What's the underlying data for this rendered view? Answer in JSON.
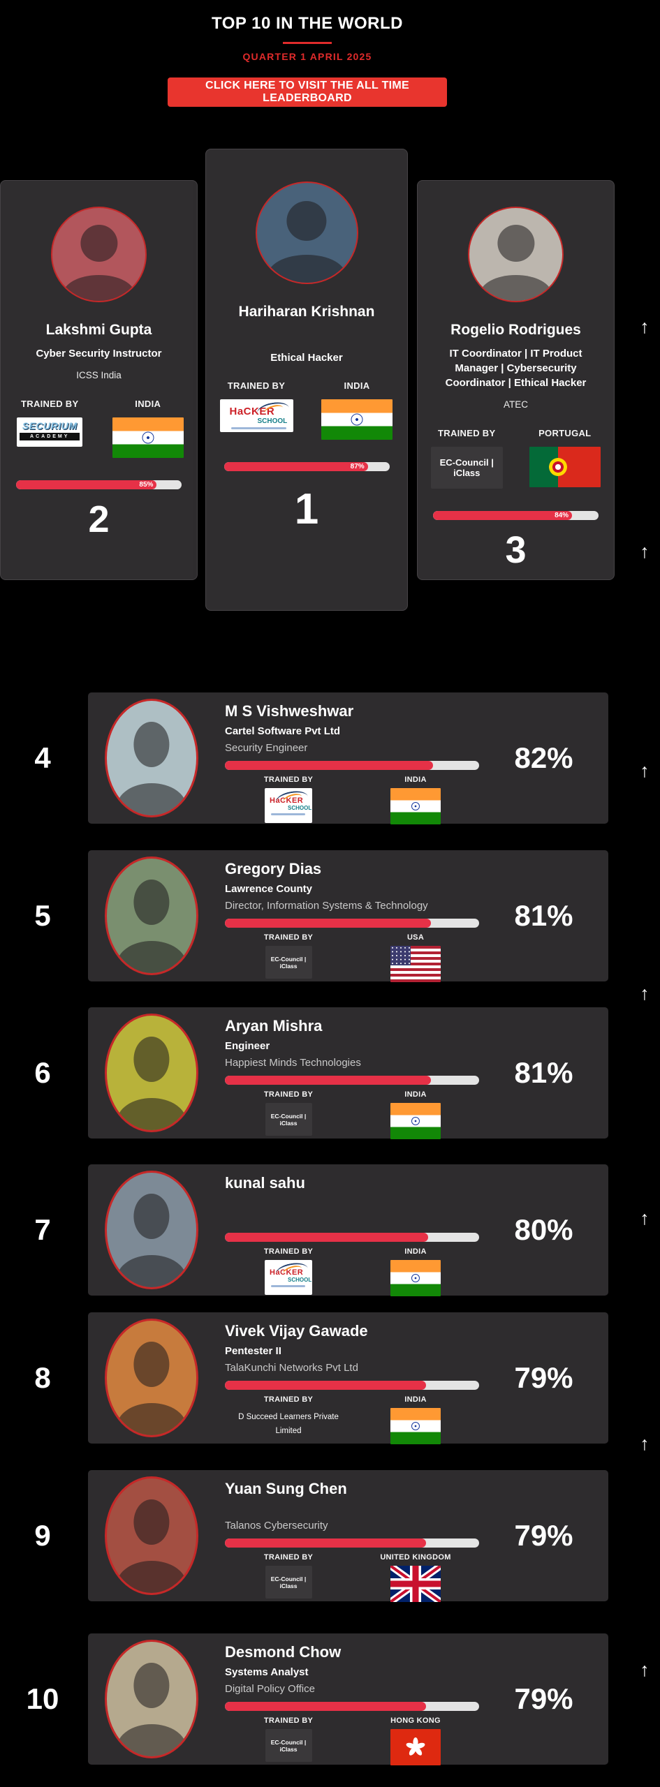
{
  "colors": {
    "background": "#000000",
    "card": "#2f2d2f",
    "bar_red": "#e63147",
    "bar_track": "#e4e4e4",
    "button_red": "#e8352e",
    "subtitle_red": "#e02b2b",
    "avatar_ring": "#c62828"
  },
  "header": {
    "title": "TOP 10 IN THE WORLD",
    "subtitle": "QUARTER 1 APRIL 2025",
    "cta_label": "CLICK HERE TO VISIT THE ALL TIME LEADERBOARD"
  },
  "labels": {
    "trained_by": "TRAINED BY"
  },
  "icons": {
    "up_arrow": "↑"
  },
  "logos": {
    "securium_academy": {
      "line1": "SECURIUM",
      "line2": "ACADEMY"
    },
    "hacker_school": {
      "line1": "HaCKER",
      "line2": "SCHOOL"
    },
    "ec_council_iclass": {
      "text": "EC-Council | iClass"
    }
  },
  "podium": [
    {
      "rank": "2",
      "name": "Lakshmi Gupta",
      "role": "Cyber Security Instructor",
      "company": "ICSS India",
      "country": "INDIA",
      "percent": 85,
      "percent_label": "85%",
      "avatar_bg": "#b2565c"
    },
    {
      "rank": "1",
      "name": "Hariharan Krishnan",
      "role": "",
      "company": "Ethical Hacker",
      "country": "INDIA",
      "percent": 87,
      "percent_label": "87%",
      "avatar_bg": "#49627a"
    },
    {
      "rank": "3",
      "name": "Rogelio Rodrigues",
      "role": "IT Coordinator | IT Product Manager | Cybersecurity Coordinator | Ethical Hacker",
      "company": "ATEC",
      "country": "PORTUGAL",
      "percent": 84,
      "percent_label": "84%",
      "avatar_bg": "#bcb6ae"
    }
  ],
  "list": [
    {
      "rank": "4",
      "name": "M S Vishweshwar",
      "line2": "Cartel Software Pvt Ltd",
      "line3": "Security Engineer",
      "percent": 82,
      "percent_label": "82%",
      "country": "INDIA",
      "avatar_bg": "#aebfc4"
    },
    {
      "rank": "5",
      "name": "Gregory Dias",
      "line2": "Lawrence County",
      "line3": "Director, Information Systems & Technology",
      "percent": 81,
      "percent_label": "81%",
      "country": "USA",
      "avatar_bg": "#7a8f6f"
    },
    {
      "rank": "6",
      "name": "Aryan Mishra",
      "line2": "Engineer",
      "line3": "Happiest Minds Technologies",
      "percent": 81,
      "percent_label": "81%",
      "country": "INDIA",
      "avatar_bg": "#b8b23a"
    },
    {
      "rank": "7",
      "name": "kunal sahu",
      "line2": "",
      "line3": "",
      "percent": 80,
      "percent_label": "80%",
      "country": "INDIA",
      "avatar_bg": "#7d8a96"
    },
    {
      "rank": "8",
      "name": "Vivek Vijay Gawade",
      "line2": "Pentester II",
      "line3": "TalaKunchi Networks Pvt Ltd",
      "percent": 79,
      "percent_label": "79%",
      "country": "INDIA",
      "trainer_text": "D Succeed Learners Private Limited",
      "avatar_bg": "#c77b3d"
    },
    {
      "rank": "9",
      "name": "Yuan Sung Chen",
      "line2": "",
      "line3": "Talanos Cybersecurity",
      "percent": 79,
      "percent_label": "79%",
      "country": "UNITED KINGDOM",
      "avatar_bg": "#a34f42"
    },
    {
      "rank": "10",
      "name": "Desmond Chow",
      "line2": "Systems Analyst",
      "line3": "Digital Policy Office",
      "percent": 79,
      "percent_label": "79%",
      "country": "HONG KONG",
      "avatar_bg": "#b5a98e"
    }
  ]
}
